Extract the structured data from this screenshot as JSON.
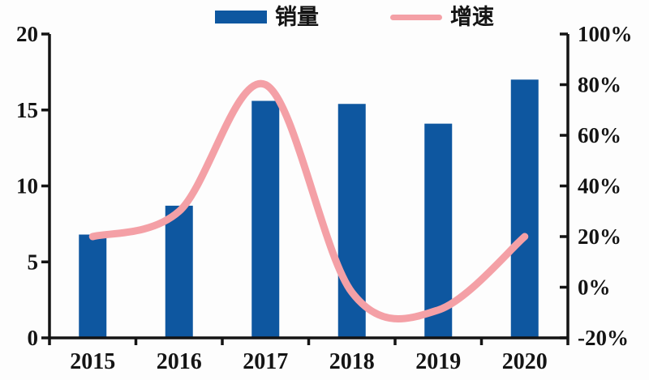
{
  "chart_data": {
    "type": "bar+line combo",
    "categories": [
      "2015",
      "2016",
      "2017",
      "2018",
      "2019",
      "2020"
    ],
    "series": [
      {
        "name": "销量",
        "type": "bar",
        "axis": "left",
        "color": "#0E57A0",
        "values": [
          6.8,
          8.7,
          15.6,
          15.4,
          14.1,
          17.0
        ]
      },
      {
        "name": "增速",
        "type": "line",
        "axis": "right",
        "color": "#F4A0A6",
        "values_percent": [
          20,
          30,
          80,
          -2,
          -9,
          20
        ]
      }
    ],
    "left_axis": {
      "min": 0,
      "max": 20,
      "tick_values": [
        0,
        5,
        10,
        15,
        20
      ],
      "tick_labels": [
        "0",
        "5",
        "10",
        "15",
        "20"
      ]
    },
    "right_axis": {
      "min": -20,
      "max": 100,
      "tick_values": [
        -20,
        0,
        20,
        40,
        60,
        80,
        100
      ],
      "tick_labels": [
        "-20%",
        "0%",
        "20%",
        "40%",
        "60%",
        "80%",
        "100%"
      ]
    },
    "title": "",
    "xlabel": "",
    "ylabel": "",
    "grid": "off",
    "legend_position": "top-center",
    "axis_color": "#141414",
    "smooth_line": true
  },
  "legend": {
    "sales_label": "销量",
    "growth_label": "增速"
  }
}
